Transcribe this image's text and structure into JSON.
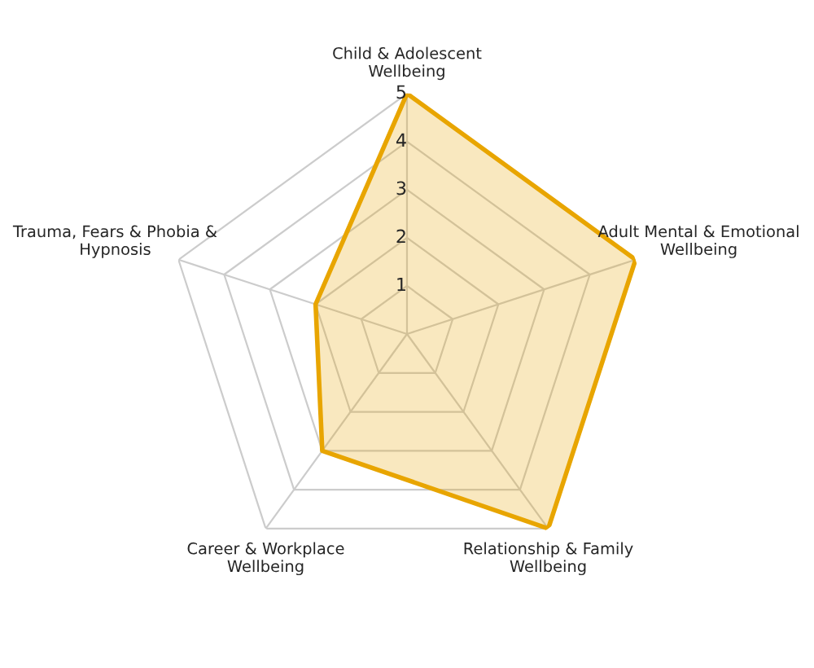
{
  "chart_data": {
    "type": "radar",
    "categories": [
      "Child & Adolescent\nWellbeing",
      "Adult Mental & Emotional\nWellbeing",
      "Relationship & Family\nWellbeing",
      "Career & Workplace\nWellbeing",
      "Trauma, Fears & Phobia &\nHypnosis"
    ],
    "series": [
      {
        "color": "#e8a500",
        "values": [
          5,
          5,
          5,
          3,
          2
        ]
      }
    ],
    "ylim": [
      0,
      5
    ],
    "yticks": [
      1,
      2,
      3,
      4,
      5
    ],
    "grid": true,
    "marker": "none",
    "line_style": "solid"
  }
}
